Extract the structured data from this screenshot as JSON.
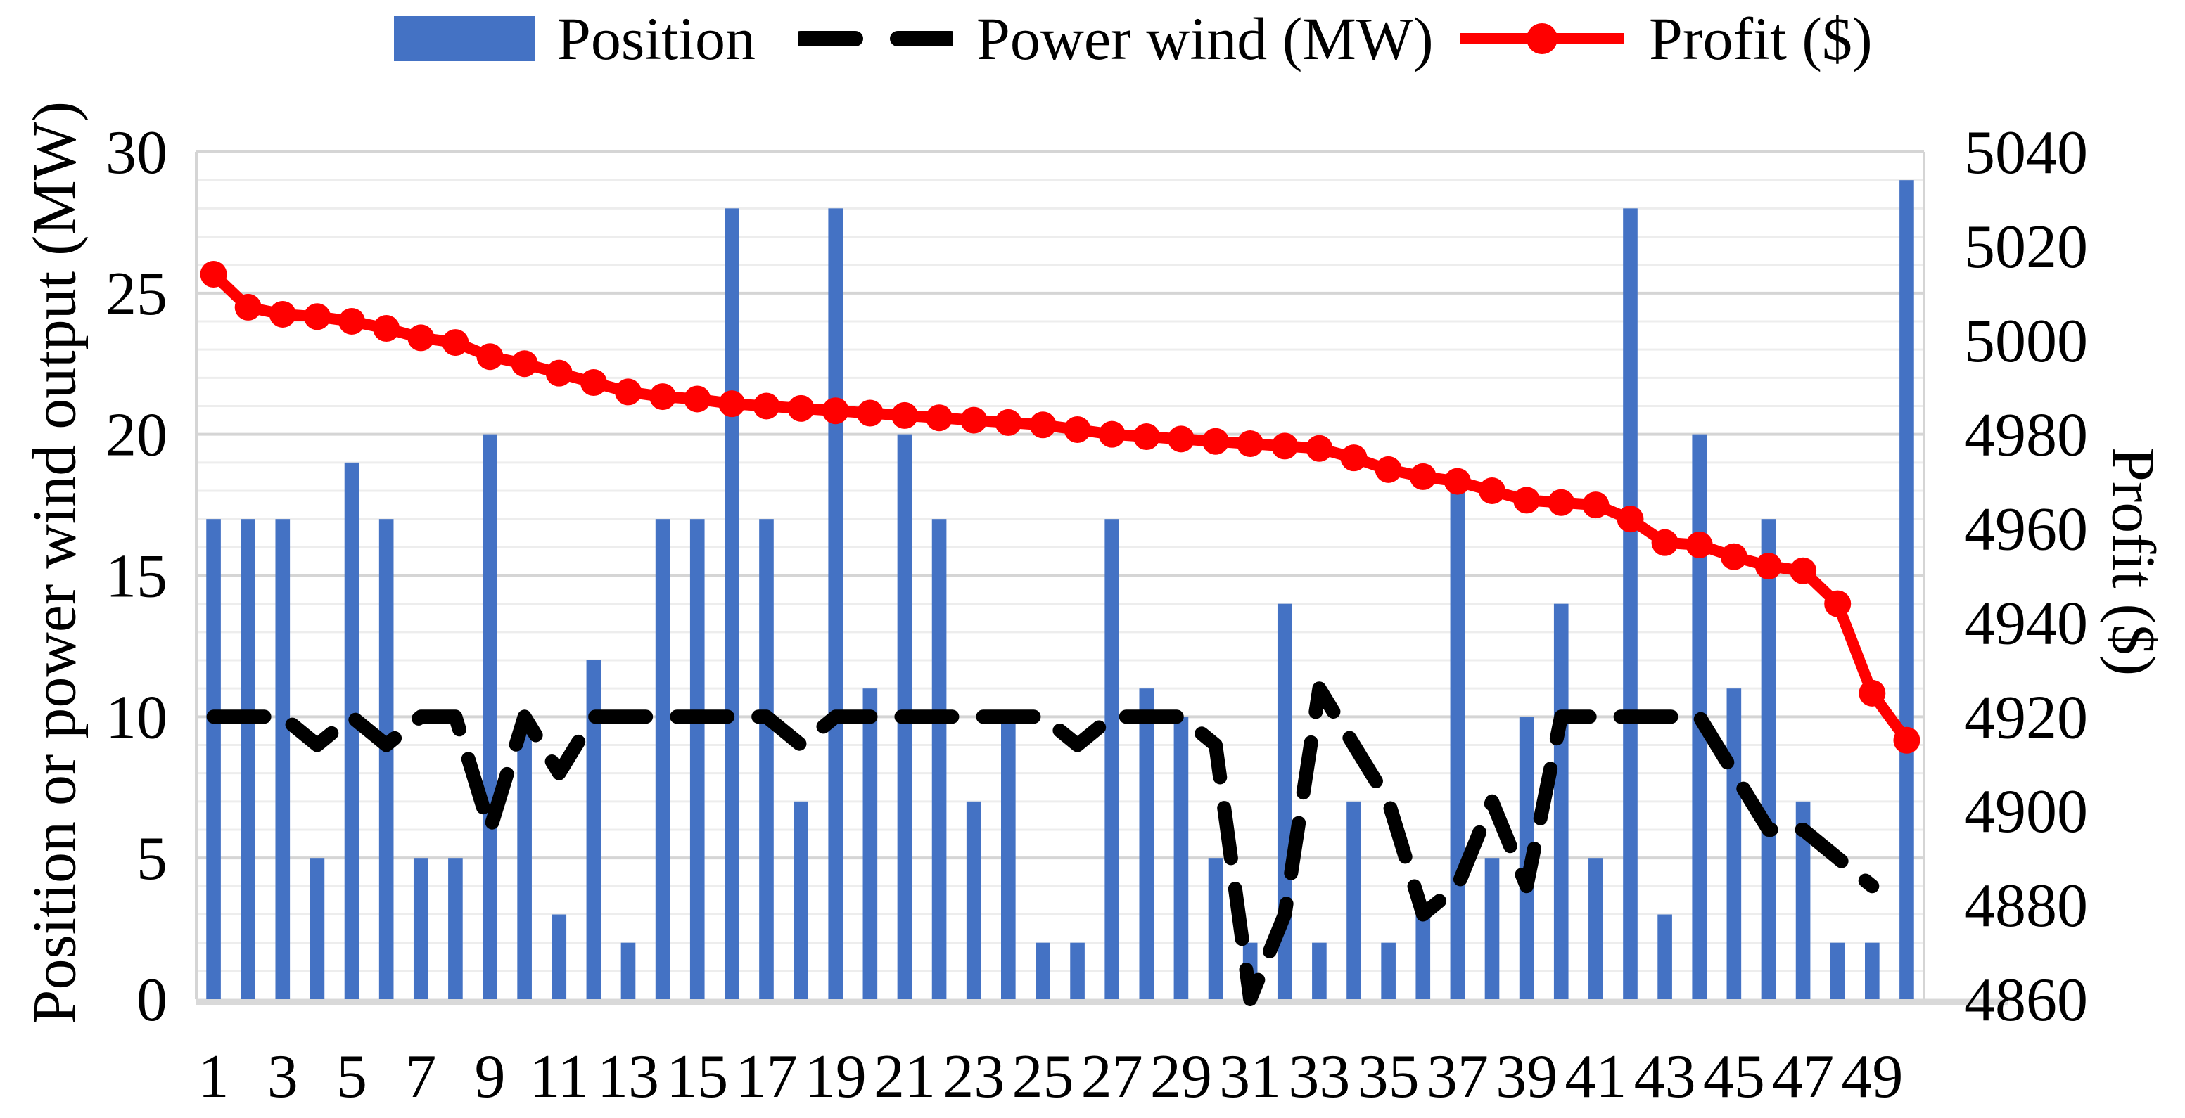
{
  "chart_data": {
    "type": "bar",
    "title": "",
    "x_label": "",
    "categories": [
      1,
      2,
      3,
      4,
      5,
      6,
      7,
      8,
      9,
      10,
      11,
      12,
      13,
      14,
      15,
      16,
      17,
      18,
      19,
      20,
      21,
      22,
      23,
      24,
      25,
      26,
      27,
      28,
      29,
      30,
      31,
      32,
      33,
      34,
      35,
      36,
      37,
      38,
      39,
      40,
      41,
      42,
      43,
      44,
      45,
      46,
      47,
      48,
      49,
      50
    ],
    "x_tick_labels": [
      1,
      3,
      5,
      7,
      9,
      11,
      13,
      15,
      17,
      19,
      21,
      23,
      25,
      27,
      29,
      31,
      33,
      35,
      37,
      39,
      41,
      43,
      45,
      47,
      49
    ],
    "left_axis": {
      "title": "Position or power wind output (MW)",
      "min": 0,
      "max": 30,
      "ticks": [
        0,
        5,
        10,
        15,
        20,
        25,
        30
      ]
    },
    "right_axis": {
      "title": "Profit ($)",
      "min": 4860,
      "max": 5040,
      "ticks": [
        4860,
        4880,
        4900,
        4920,
        4940,
        4960,
        4980,
        5000,
        5020,
        5040
      ]
    },
    "grid": {
      "minor_step": 1,
      "major_step": 5,
      "minor_color": "#EDEDED",
      "major_color": "#D5D5D5",
      "baseline_color": "#D9D9D9"
    },
    "legend_position": "top",
    "series": [
      {
        "name": "Position",
        "type": "bar",
        "axis": "left",
        "color": "#4472C4",
        "values": [
          17,
          17,
          17,
          5,
          19,
          17,
          5,
          5,
          20,
          10,
          3,
          12,
          2,
          17,
          17,
          28,
          17,
          7,
          28,
          11,
          20,
          17,
          7,
          10,
          2,
          2,
          17,
          11,
          10,
          5,
          2,
          14,
          2,
          7,
          2,
          3,
          18,
          5,
          10,
          14,
          5,
          28,
          3,
          20,
          11,
          17,
          7,
          2,
          2,
          29
        ]
      },
      {
        "name": "Power wind (MW)",
        "type": "line",
        "axis": "left",
        "color": "#000000",
        "dashed": true,
        "values": [
          10,
          10,
          10,
          9,
          10,
          9,
          10,
          10,
          6,
          10,
          8,
          10,
          10,
          10,
          10,
          10,
          10,
          9,
          10,
          10,
          10,
          10,
          10,
          10,
          10,
          9,
          10,
          10,
          10,
          9,
          0,
          3,
          11,
          9,
          7,
          3,
          4,
          7,
          4,
          10,
          10,
          10,
          10,
          10,
          8,
          6,
          6,
          5,
          4,
          null
        ]
      },
      {
        "name": "Profit ($)",
        "type": "line",
        "axis": "right",
        "color": "#FF0000",
        "marker": "circle",
        "values": [
          5014,
          5007,
          5005.5,
          5005,
          5004,
          5002.5,
          5000.5,
          4999.5,
          4996.5,
          4995,
          4993,
          4991,
          4989,
          4988,
          4987.5,
          4986.5,
          4986,
          4985.5,
          4985,
          4984.5,
          4984,
          4983.5,
          4983,
          4982.5,
          4982,
          4981,
          4980,
          4979.5,
          4979,
          4978.5,
          4978,
          4977.5,
          4977,
          4975,
          4972.5,
          4971,
          4970,
          4968,
          4966,
          4965.5,
          4965,
          4962,
          4957,
          4956.5,
          4954,
          4952,
          4951,
          4944,
          4925,
          4915
        ]
      }
    ]
  }
}
